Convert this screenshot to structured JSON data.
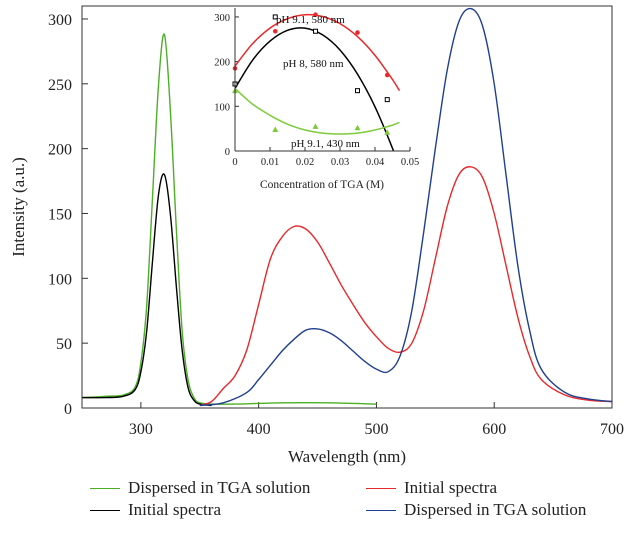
{
  "chart_data": [
    {
      "type": "line",
      "xlabel": "Wavelength (nm)",
      "ylabel": "Intensity (a.u.)",
      "xlim": [
        250,
        700
      ],
      "ylim": [
        0,
        310
      ],
      "xticks": [
        300,
        400,
        500,
        600,
        700
      ],
      "yticks": [
        0,
        50,
        100,
        150,
        200,
        250,
        300
      ],
      "grid": false,
      "legend_position": "bottom",
      "series": [
        {
          "name": "Dispersed in TGA solution",
          "color": "#4caf26",
          "x": [
            250,
            270,
            285,
            295,
            300,
            305,
            310,
            315,
            320,
            325,
            330,
            335,
            340,
            345,
            350,
            360,
            380,
            420,
            460,
            500
          ],
          "y": [
            8,
            9,
            10,
            16,
            35,
            80,
            165,
            250,
            288,
            230,
            140,
            60,
            22,
            8,
            4,
            3,
            3,
            4,
            4,
            3
          ]
        },
        {
          "name": "Initial spectra",
          "color": "#000000",
          "x": [
            250,
            270,
            285,
            295,
            300,
            305,
            310,
            315,
            320,
            325,
            330,
            335,
            340,
            345,
            350,
            360
          ],
          "y": [
            8,
            8,
            9,
            14,
            28,
            60,
            115,
            165,
            180,
            150,
            95,
            45,
            16,
            6,
            3,
            2
          ]
        },
        {
          "name": "Initial spectra",
          "color": "#e8282b",
          "x": [
            350,
            360,
            370,
            380,
            390,
            400,
            410,
            420,
            430,
            440,
            450,
            460,
            470,
            480,
            490,
            500,
            510,
            520,
            530,
            540,
            550,
            560,
            570,
            580,
            590,
            600,
            610,
            620,
            630,
            640,
            660,
            680,
            700
          ],
          "y": [
            2,
            5,
            15,
            25,
            45,
            80,
            115,
            132,
            140,
            138,
            128,
            112,
            95,
            80,
            66,
            55,
            46,
            43,
            50,
            75,
            115,
            155,
            180,
            186,
            178,
            150,
            110,
            70,
            40,
            22,
            10,
            6,
            5
          ]
        },
        {
          "name": "Dispersed in TGA solution",
          "color": "#1f3f8f",
          "x": [
            350,
            370,
            390,
            400,
            410,
            420,
            430,
            440,
            450,
            460,
            470,
            480,
            490,
            500,
            510,
            520,
            530,
            540,
            550,
            560,
            570,
            580,
            590,
            600,
            610,
            620,
            630,
            640,
            660,
            680,
            700
          ],
          "y": [
            2,
            4,
            12,
            22,
            33,
            44,
            53,
            60,
            61,
            58,
            52,
            44,
            36,
            30,
            28,
            40,
            75,
            135,
            200,
            260,
            298,
            308,
            295,
            250,
            180,
            110,
            60,
            30,
            12,
            7,
            5
          ]
        }
      ]
    },
    {
      "type": "scatter",
      "xlabel": "Concentration of TGA (M)",
      "ylabel": "",
      "xlim": [
        0,
        0.05
      ],
      "ylim": [
        0,
        320
      ],
      "xticks": [
        0,
        0.01,
        0.02,
        0.03,
        0.04,
        0.05
      ],
      "xtick_labels": [
        "0",
        "0.01",
        "0.02",
        "0.03",
        "0.04",
        "0.05"
      ],
      "yticks": [
        0,
        100,
        200,
        300
      ],
      "annotations": [
        "pH 9.1, 580 nm",
        "pH 8, 580 nm",
        "pH 9.1, 430 nm"
      ],
      "series": [
        {
          "name": "pH 9.1, 580 nm",
          "color": "#e8282b",
          "marker": "filled-circle",
          "points_x": [
            0,
            0.0115,
            0.023,
            0.035,
            0.0435
          ],
          "points_y": [
            185,
            268,
            305,
            265,
            170
          ],
          "fit_x": [
            0,
            0.005,
            0.01,
            0.015,
            0.02,
            0.025,
            0.03,
            0.035,
            0.04,
            0.045,
            0.047
          ],
          "fit_y": [
            190,
            240,
            275,
            296,
            305,
            301,
            285,
            256,
            214,
            160,
            135
          ]
        },
        {
          "name": "pH 8, 580 nm",
          "color": "#000000",
          "marker": "open-square",
          "points_x": [
            0,
            0.0115,
            0.023,
            0.035,
            0.0435
          ],
          "points_y": [
            150,
            300,
            268,
            135,
            115
          ],
          "fit_x": [
            0,
            0.005,
            0.01,
            0.015,
            0.02,
            0.025,
            0.03,
            0.035,
            0.04,
            0.045,
            0.047
          ],
          "fit_y": [
            140,
            203,
            246,
            270,
            275,
            260,
            226,
            172,
            99,
            6,
            -40
          ]
        },
        {
          "name": "pH 9.1, 430 nm",
          "color": "#7ecb3b",
          "marker": "filled-triangle",
          "points_x": [
            0,
            0.0115,
            0.023,
            0.035,
            0.0435
          ],
          "points_y": [
            135,
            48,
            55,
            52,
            42
          ],
          "fit_x": [
            0,
            0.005,
            0.01,
            0.015,
            0.02,
            0.025,
            0.03,
            0.035,
            0.04,
            0.045,
            0.047
          ],
          "fit_y": [
            140,
            105,
            80,
            60,
            47,
            40,
            38,
            40,
            47,
            58,
            64
          ]
        }
      ]
    }
  ],
  "legend": {
    "items": [
      {
        "label": "Dispersed in TGA solution",
        "color": "#4caf26"
      },
      {
        "label": "Initial spectra",
        "color": "#e8282b"
      },
      {
        "label": "Initial spectra",
        "color": "#000000"
      },
      {
        "label": "Dispersed in TGA solution",
        "color": "#1f3f8f"
      }
    ]
  }
}
